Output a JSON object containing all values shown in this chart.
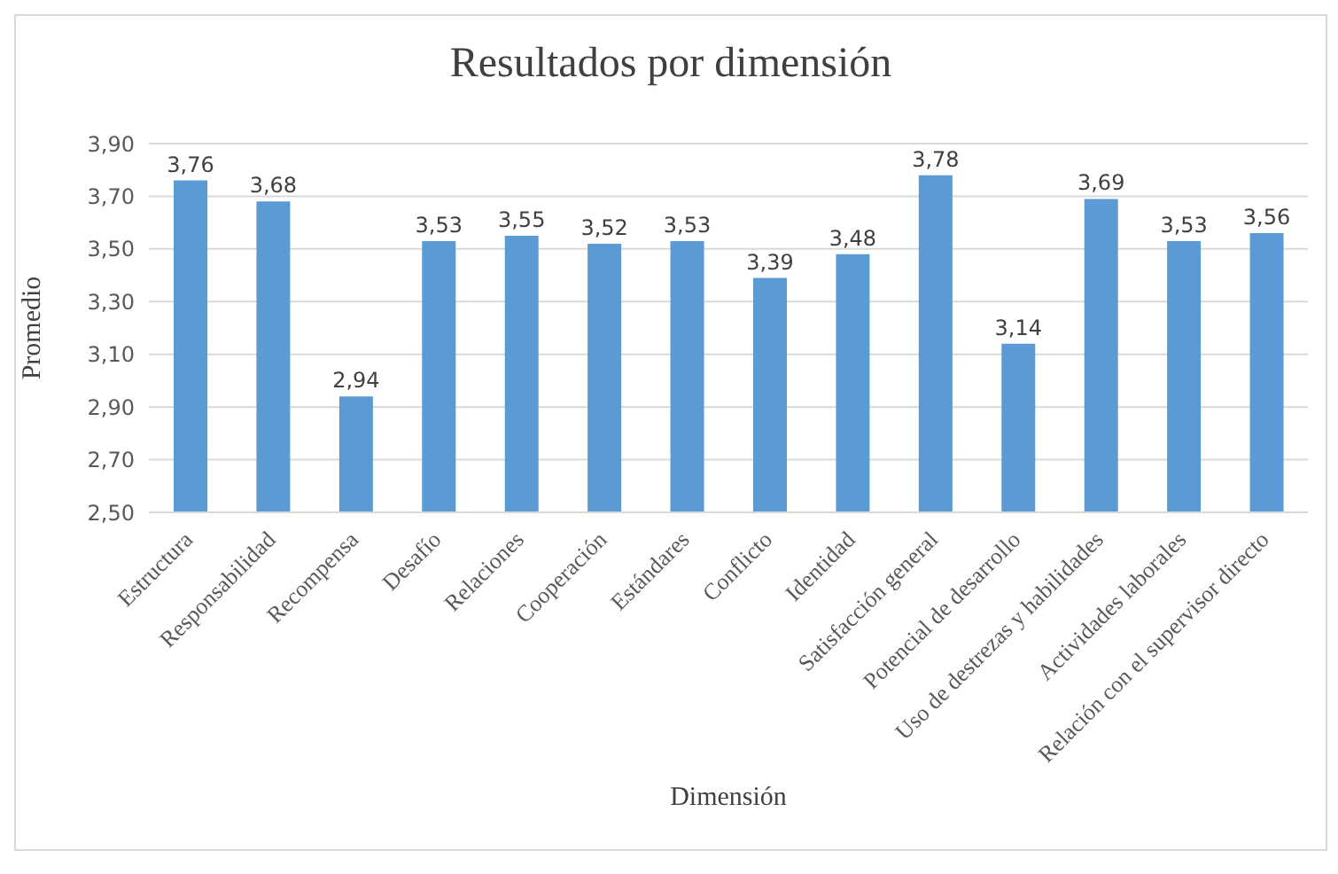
{
  "chart_data": {
    "type": "bar",
    "title": "Resultados por dimensión",
    "xlabel": "Dimensión",
    "ylabel": "Promedio",
    "categories": [
      "Estructura",
      "Responsabilidad",
      "Recompensa",
      "Desafío",
      "Relaciones",
      "Cooperación",
      "Estándares",
      "Conflicto",
      "Identidad",
      "Satisfacción general",
      "Potencial de desarrollo",
      "Uso de destrezas y habilidades",
      "Actividades laborales",
      "Relación con el supervisor directo"
    ],
    "values": [
      3.76,
      3.68,
      2.94,
      3.53,
      3.55,
      3.52,
      3.53,
      3.39,
      3.48,
      3.78,
      3.14,
      3.69,
      3.53,
      3.56
    ],
    "value_labels": [
      "3,76",
      "3,68",
      "2,94",
      "3,53",
      "3,55",
      "3,52",
      "3,53",
      "3,39",
      "3,48",
      "3,78",
      "3,14",
      "3,69",
      "3,53",
      "3,56"
    ],
    "color": "#5b9bd5",
    "ylim": [
      2.5,
      3.9
    ],
    "yticks": [
      {
        "value": 2.5,
        "label": "2,50"
      },
      {
        "value": 2.7,
        "label": "2,70"
      },
      {
        "value": 2.9,
        "label": "2,90"
      },
      {
        "value": 3.1,
        "label": "3,10"
      },
      {
        "value": 3.3,
        "label": "3,30"
      },
      {
        "value": 3.5,
        "label": "3,50"
      },
      {
        "value": 3.7,
        "label": "3,70"
      },
      {
        "value": 3.9,
        "label": "3,90"
      }
    ],
    "grid": "y"
  }
}
